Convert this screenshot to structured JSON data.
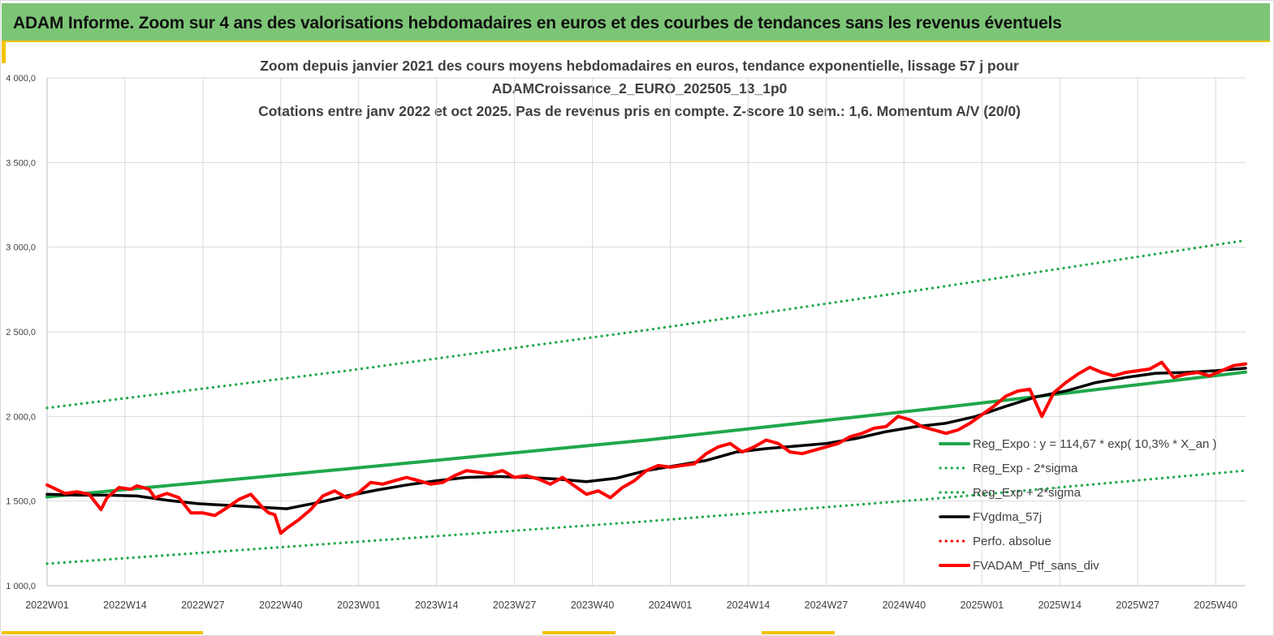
{
  "banner": {
    "title": "ADAM Informe. Zoom sur 4 ans des valorisations hebdomadaires en euros et des courbes de tendances sans les revenus éventuels"
  },
  "colors": {
    "banner_bg": "#7cc576",
    "accent_yellow": "#f2c200",
    "trend_green": "#1fa84a",
    "fv_black": "#000000",
    "ptf_red": "#ff0000"
  },
  "chart_data": {
    "type": "line",
    "title": [
      "Zoom depuis janvier 2021 des cours moyens hebdomadaires  en euros, tendance exponentielle, lissage 57 j pour",
      "ADAMCroissance_2_EURO_202505_13_1p0",
      "Cotations  entre janv 2022 et oct 2025. Pas de revenus pris en compte. Z-score 10 sem.: 1,6. Momentum A/V (20/0)"
    ],
    "xlabel": "",
    "ylabel": "",
    "ylim": [
      1000,
      4000
    ],
    "y_ticks": [
      "1 000,0",
      "1 500,0",
      "2 000,0",
      "2 500,0",
      "3 000,0",
      "3 500,0",
      "4 000,0"
    ],
    "x_ticks": [
      "2022W01",
      "2022W14",
      "2022W27",
      "2022W40",
      "2023W01",
      "2023W14",
      "2023W27",
      "2023W40",
      "2024W01",
      "2024W14",
      "2024W27",
      "2024W40",
      "2025W01",
      "2025W14",
      "2025W27",
      "2025W40"
    ],
    "x_tick_week_index": [
      0,
      13,
      26,
      39,
      52,
      65,
      78,
      91,
      104,
      117,
      130,
      143,
      156,
      169,
      182,
      195
    ],
    "xlim_weeks": [
      0,
      200
    ],
    "grid": true,
    "legend_position": "bottom-right",
    "series": [
      {
        "name": "Reg_Expo : y = 114,67 * exp( 10,3% *  X_an )",
        "style": "solid",
        "color": "#1fa84a",
        "x": [
          0,
          50,
          100,
          150,
          200
        ],
        "values": [
          1525,
          1690,
          1860,
          2055,
          2262
        ]
      },
      {
        "name": "Reg_Exp - 2*sigma",
        "style": "dotted",
        "color": "#1fa84a",
        "x": [
          0,
          50,
          100,
          150,
          200
        ],
        "values": [
          1130,
          1255,
          1380,
          1520,
          1680
        ]
      },
      {
        "name": "Reg_Exp + 2*sigma",
        "style": "dotted",
        "color": "#1fa84a",
        "x": [
          0,
          50,
          100,
          150,
          200
        ],
        "values": [
          2050,
          2270,
          2510,
          2770,
          3040
        ]
      },
      {
        "name": "FVgdma_57j",
        "style": "solid",
        "color": "#000000",
        "x": [
          0,
          5,
          10,
          15,
          20,
          25,
          30,
          35,
          40,
          45,
          50,
          55,
          60,
          65,
          70,
          75,
          80,
          85,
          90,
          95,
          100,
          105,
          110,
          115,
          120,
          125,
          130,
          135,
          140,
          145,
          150,
          155,
          160,
          165,
          170,
          175,
          180,
          185,
          190,
          195,
          200
        ],
        "values": [
          1540,
          1535,
          1535,
          1530,
          1505,
          1485,
          1475,
          1465,
          1455,
          1490,
          1530,
          1565,
          1595,
          1620,
          1640,
          1645,
          1640,
          1630,
          1615,
          1635,
          1680,
          1710,
          1740,
          1790,
          1810,
          1825,
          1840,
          1870,
          1910,
          1940,
          1960,
          2000,
          2060,
          2115,
          2150,
          2200,
          2230,
          2255,
          2260,
          2270,
          2285
        ]
      },
      {
        "name": "Perfo. absolue",
        "style": "dotted",
        "color": "#ff0000",
        "x": [],
        "values": []
      },
      {
        "name": "FVADAM_Ptf_sans_div",
        "style": "solid",
        "color": "#ff0000",
        "x": [
          0,
          3,
          5,
          7,
          9,
          10,
          12,
          14,
          15,
          17,
          18,
          20,
          22,
          24,
          26,
          28,
          30,
          32,
          34,
          36,
          37,
          38,
          39,
          40,
          42,
          44,
          46,
          48,
          50,
          52,
          54,
          56,
          58,
          60,
          62,
          64,
          66,
          68,
          70,
          72,
          74,
          76,
          78,
          80,
          82,
          84,
          86,
          88,
          90,
          92,
          94,
          96,
          98,
          100,
          102,
          104,
          106,
          108,
          110,
          112,
          114,
          116,
          118,
          120,
          122,
          124,
          126,
          128,
          130,
          132,
          134,
          136,
          138,
          140,
          142,
          144,
          146,
          148,
          150,
          152,
          154,
          156,
          158,
          160,
          162,
          164,
          166,
          168,
          170,
          172,
          174,
          176,
          178,
          180,
          182,
          184,
          186,
          188,
          190,
          192,
          194,
          196,
          198,
          200
        ],
        "values": [
          1595,
          1545,
          1555,
          1540,
          1450,
          1520,
          1580,
          1570,
          1590,
          1570,
          1520,
          1545,
          1520,
          1430,
          1430,
          1415,
          1460,
          1510,
          1540,
          1460,
          1430,
          1420,
          1310,
          1340,
          1390,
          1450,
          1530,
          1560,
          1520,
          1550,
          1610,
          1600,
          1620,
          1640,
          1620,
          1600,
          1610,
          1650,
          1680,
          1670,
          1660,
          1680,
          1640,
          1650,
          1630,
          1600,
          1640,
          1590,
          1540,
          1560,
          1520,
          1580,
          1620,
          1680,
          1710,
          1700,
          1710,
          1720,
          1780,
          1820,
          1840,
          1790,
          1820,
          1860,
          1840,
          1790,
          1780,
          1800,
          1820,
          1840,
          1880,
          1900,
          1930,
          1940,
          2000,
          1980,
          1940,
          1920,
          1900,
          1920,
          1960,
          2010,
          2060,
          2120,
          2150,
          2160,
          2000,
          2140,
          2200,
          2250,
          2290,
          2260,
          2240,
          2260,
          2270,
          2280,
          2320,
          2230,
          2250,
          2260,
          2240,
          2270,
          2300,
          2310
        ]
      }
    ]
  }
}
